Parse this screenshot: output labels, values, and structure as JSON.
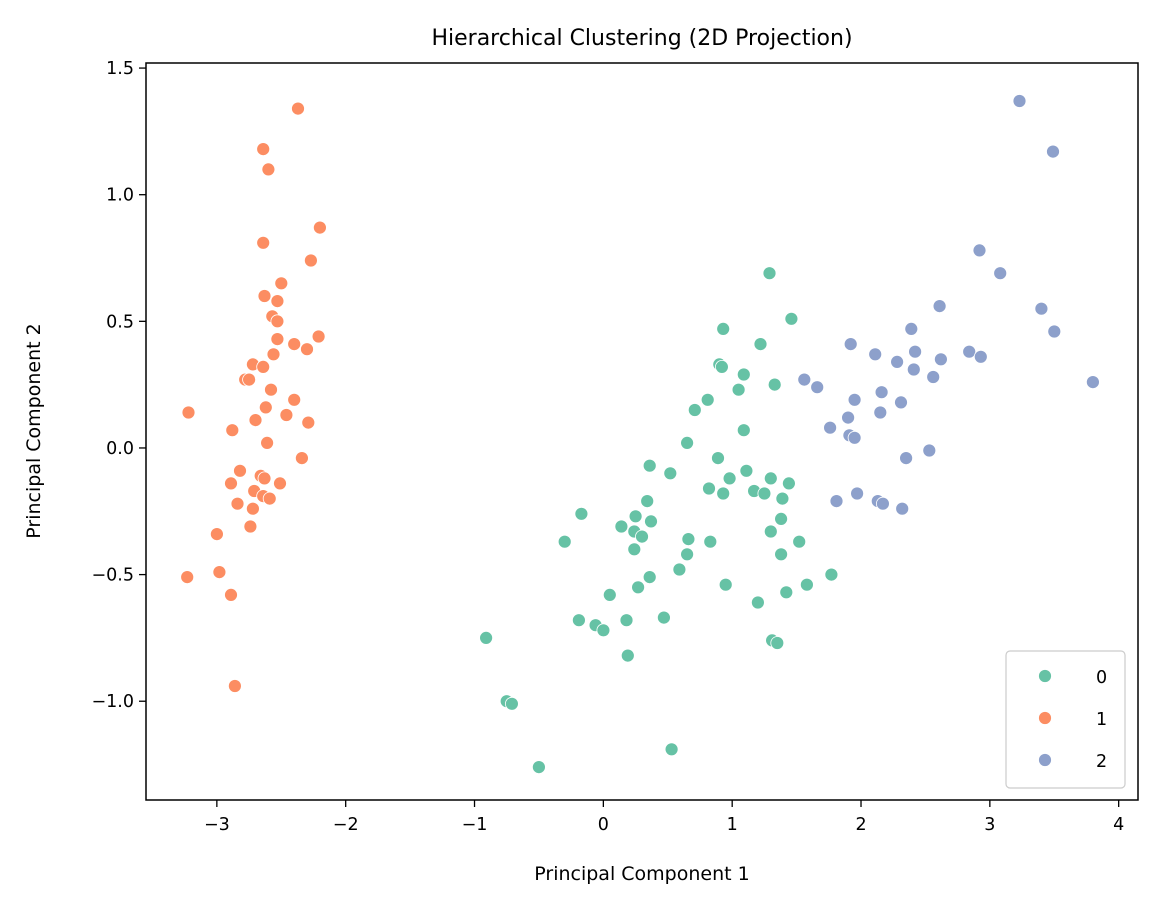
{
  "chart_data": {
    "type": "scatter",
    "title": "Hierarchical Clustering (2D Projection)",
    "xlabel": "Principal Component 1",
    "ylabel": "Principal Component 2",
    "xlim": [
      -3.55,
      4.15
    ],
    "ylim": [
      -1.39,
      1.52
    ],
    "xticks": [
      -3,
      -2,
      -1,
      0,
      1,
      2,
      3,
      4
    ],
    "xtick_labels": [
      "−3",
      "−2",
      "−1",
      "0",
      "1",
      "2",
      "3",
      "4"
    ],
    "yticks": [
      -1.0,
      -0.5,
      0.0,
      0.5,
      1.0,
      1.5
    ],
    "ytick_labels": [
      "−1.0",
      "−0.5",
      "0.0",
      "0.5",
      "1.0",
      "1.5"
    ],
    "grid": false,
    "legend_position": "lower-right",
    "series": [
      {
        "name": "0",
        "color": "#66c2a5",
        "points": [
          [
            1.29,
            0.69
          ],
          [
            0.93,
            0.47
          ],
          [
            1.46,
            0.51
          ],
          [
            1.22,
            0.41
          ],
          [
            0.9,
            0.33
          ],
          [
            0.92,
            0.32
          ],
          [
            1.09,
            0.29
          ],
          [
            1.33,
            0.25
          ],
          [
            1.05,
            0.23
          ],
          [
            0.81,
            0.19
          ],
          [
            0.71,
            0.15
          ],
          [
            1.09,
            0.07
          ],
          [
            0.65,
            0.02
          ],
          [
            0.89,
            -0.04
          ],
          [
            0.36,
            -0.07
          ],
          [
            0.52,
            -0.1
          ],
          [
            1.11,
            -0.09
          ],
          [
            0.98,
            -0.12
          ],
          [
            1.3,
            -0.12
          ],
          [
            1.44,
            -0.14
          ],
          [
            0.82,
            -0.16
          ],
          [
            0.93,
            -0.18
          ],
          [
            1.17,
            -0.17
          ],
          [
            1.25,
            -0.18
          ],
          [
            1.39,
            -0.2
          ],
          [
            0.34,
            -0.21
          ],
          [
            -0.17,
            -0.26
          ],
          [
            0.25,
            -0.27
          ],
          [
            0.37,
            -0.29
          ],
          [
            1.38,
            -0.28
          ],
          [
            0.14,
            -0.31
          ],
          [
            0.24,
            -0.33
          ],
          [
            0.3,
            -0.35
          ],
          [
            1.3,
            -0.33
          ],
          [
            -0.3,
            -0.37
          ],
          [
            0.66,
            -0.36
          ],
          [
            0.83,
            -0.37
          ],
          [
            1.52,
            -0.37
          ],
          [
            0.24,
            -0.4
          ],
          [
            0.65,
            -0.42
          ],
          [
            1.38,
            -0.42
          ],
          [
            0.59,
            -0.48
          ],
          [
            0.36,
            -0.51
          ],
          [
            1.77,
            -0.5
          ],
          [
            0.27,
            -0.55
          ],
          [
            0.95,
            -0.54
          ],
          [
            1.58,
            -0.54
          ],
          [
            1.42,
            -0.57
          ],
          [
            0.05,
            -0.58
          ],
          [
            1.2,
            -0.61
          ],
          [
            -0.19,
            -0.68
          ],
          [
            0.18,
            -0.68
          ],
          [
            0.47,
            -0.67
          ],
          [
            -0.06,
            -0.7
          ],
          [
            0.0,
            -0.72
          ],
          [
            1.31,
            -0.76
          ],
          [
            1.35,
            -0.77
          ],
          [
            -0.91,
            -0.75
          ],
          [
            0.19,
            -0.82
          ],
          [
            -0.75,
            -1.0
          ],
          [
            -0.71,
            -1.01
          ],
          [
            0.53,
            -1.19
          ],
          [
            -0.5,
            -1.26
          ]
        ]
      },
      {
        "name": "1",
        "color": "#fc8d62",
        "points": [
          [
            -2.37,
            1.34
          ],
          [
            -2.64,
            1.18
          ],
          [
            -2.6,
            1.1
          ],
          [
            -2.2,
            0.87
          ],
          [
            -2.64,
            0.81
          ],
          [
            -2.27,
            0.74
          ],
          [
            -2.5,
            0.65
          ],
          [
            -2.63,
            0.6
          ],
          [
            -2.53,
            0.58
          ],
          [
            -2.57,
            0.52
          ],
          [
            -2.53,
            0.5
          ],
          [
            -2.53,
            0.43
          ],
          [
            -2.21,
            0.44
          ],
          [
            -2.4,
            0.41
          ],
          [
            -2.3,
            0.39
          ],
          [
            -2.56,
            0.37
          ],
          [
            -2.72,
            0.33
          ],
          [
            -2.64,
            0.32
          ],
          [
            -2.78,
            0.27
          ],
          [
            -2.75,
            0.27
          ],
          [
            -2.58,
            0.23
          ],
          [
            -2.4,
            0.19
          ],
          [
            -2.62,
            0.16
          ],
          [
            -2.7,
            0.11
          ],
          [
            -2.46,
            0.13
          ],
          [
            -2.29,
            0.1
          ],
          [
            -3.22,
            0.14
          ],
          [
            -2.88,
            0.07
          ],
          [
            -2.61,
            0.02
          ],
          [
            -2.34,
            -0.04
          ],
          [
            -2.82,
            -0.09
          ],
          [
            -2.66,
            -0.11
          ],
          [
            -2.63,
            -0.12
          ],
          [
            -2.89,
            -0.14
          ],
          [
            -2.51,
            -0.14
          ],
          [
            -2.71,
            -0.17
          ],
          [
            -2.64,
            -0.19
          ],
          [
            -2.59,
            -0.2
          ],
          [
            -2.84,
            -0.22
          ],
          [
            -2.72,
            -0.24
          ],
          [
            -2.74,
            -0.31
          ],
          [
            -3.0,
            -0.34
          ],
          [
            -2.98,
            -0.49
          ],
          [
            -3.23,
            -0.51
          ],
          [
            -2.89,
            -0.58
          ],
          [
            -2.86,
            -0.94
          ]
        ]
      },
      {
        "name": "2",
        "color": "#8da0cb",
        "points": [
          [
            3.23,
            1.37
          ],
          [
            3.49,
            1.17
          ],
          [
            2.92,
            0.78
          ],
          [
            3.08,
            0.69
          ],
          [
            2.61,
            0.56
          ],
          [
            3.4,
            0.55
          ],
          [
            2.39,
            0.47
          ],
          [
            3.5,
            0.46
          ],
          [
            1.92,
            0.41
          ],
          [
            2.42,
            0.38
          ],
          [
            2.11,
            0.37
          ],
          [
            2.84,
            0.38
          ],
          [
            2.93,
            0.36
          ],
          [
            2.62,
            0.35
          ],
          [
            2.28,
            0.34
          ],
          [
            2.41,
            0.31
          ],
          [
            2.56,
            0.28
          ],
          [
            1.56,
            0.27
          ],
          [
            3.8,
            0.26
          ],
          [
            1.66,
            0.24
          ],
          [
            2.16,
            0.22
          ],
          [
            1.95,
            0.19
          ],
          [
            2.31,
            0.18
          ],
          [
            2.15,
            0.14
          ],
          [
            1.9,
            0.12
          ],
          [
            1.76,
            0.08
          ],
          [
            1.91,
            0.05
          ],
          [
            1.95,
            0.04
          ],
          [
            2.53,
            -0.01
          ],
          [
            2.35,
            -0.04
          ],
          [
            1.97,
            -0.18
          ],
          [
            1.81,
            -0.21
          ],
          [
            2.13,
            -0.21
          ],
          [
            2.17,
            -0.22
          ],
          [
            2.32,
            -0.24
          ]
        ]
      }
    ]
  }
}
